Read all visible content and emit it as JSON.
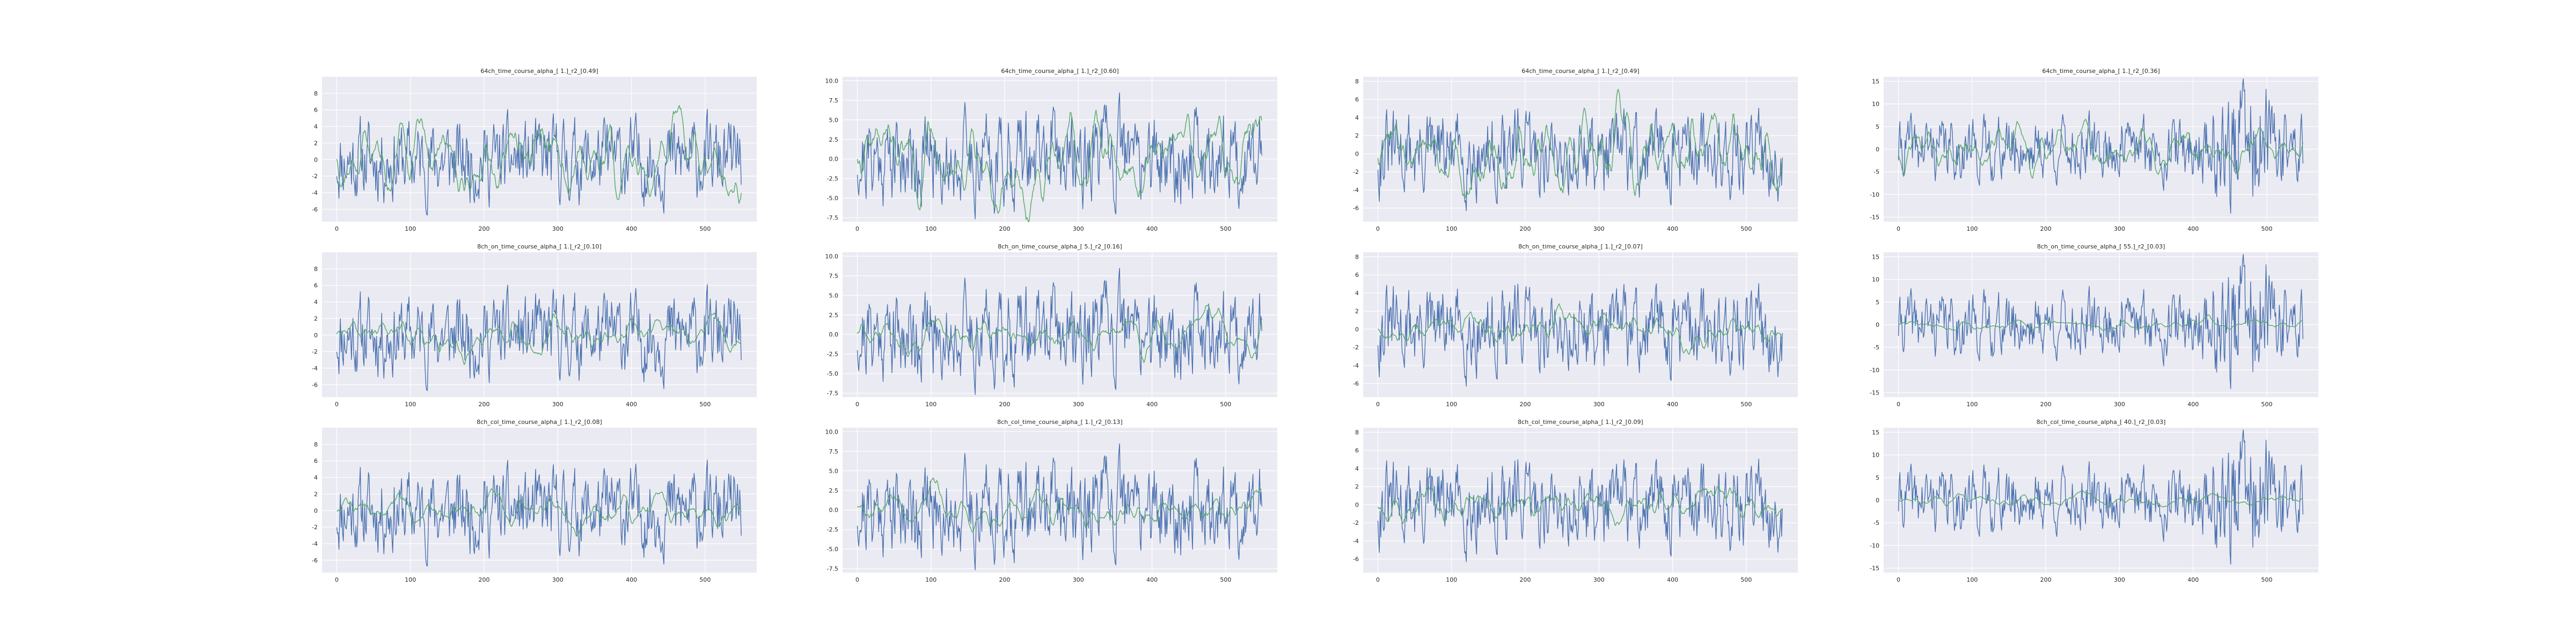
{
  "figure": {
    "background": "#ffffff",
    "axes_facecolor": "#eaeaf2",
    "grid_color": "#ffffff",
    "series_colors": [
      "#4c72b0",
      "#55a868"
    ]
  },
  "chart_data": [
    {
      "type": "line",
      "title": "64ch_time_course_alpha_[ 1.]_r2_[0.49]",
      "xlim": [
        -20,
        570
      ],
      "ylim": [
        -7.5,
        10
      ],
      "xticks": [
        0,
        100,
        200,
        300,
        400,
        500
      ],
      "yticks": [
        -6,
        -4,
        -2,
        0,
        2,
        4,
        6,
        8
      ],
      "grid": true,
      "series": [
        {
          "n": 550,
          "amp": 2.6,
          "seed": 11,
          "lag": 4,
          "envelope": "flat"
        },
        {
          "n": 550,
          "amp": 2.4,
          "seed": 12,
          "smooth": true,
          "envelope": "flat"
        }
      ]
    },
    {
      "type": "line",
      "title": "64ch_time_course_alpha_[ 1.]_r2_[0.60]",
      "xlim": [
        -20,
        570
      ],
      "ylim": [
        -8,
        10.5
      ],
      "xticks": [
        0,
        100,
        200,
        300,
        400,
        500
      ],
      "yticks": [
        -7.5,
        -5.0,
        -2.5,
        0.0,
        2.5,
        5.0,
        7.5,
        10.0
      ],
      "grid": true,
      "series": [
        {
          "n": 550,
          "amp": 3.0,
          "seed": 21,
          "envelope": "flat"
        },
        {
          "n": 550,
          "amp": 3.0,
          "seed": 22,
          "smooth": true,
          "envelope": "flat"
        }
      ]
    },
    {
      "type": "line",
      "title": "64ch_time_course_alpha_[ 1.]_r2_[0.49]",
      "xlim": [
        -20,
        570
      ],
      "ylim": [
        -7.5,
        8.5
      ],
      "xticks": [
        0,
        100,
        200,
        300,
        400,
        500
      ],
      "yticks": [
        -6,
        -4,
        -2,
        0,
        2,
        4,
        6,
        8
      ],
      "grid": true,
      "series": [
        {
          "n": 550,
          "amp": 2.4,
          "seed": 31,
          "envelope": "flat"
        },
        {
          "n": 550,
          "amp": 2.2,
          "seed": 32,
          "smooth": true,
          "envelope": "flat"
        }
      ]
    },
    {
      "type": "line",
      "title": "64ch_time_course_alpha_[ 1.]_r2_[0.36]",
      "xlim": [
        -20,
        570
      ],
      "ylim": [
        -16,
        16
      ],
      "xticks": [
        0,
        100,
        200,
        300,
        400,
        500
      ],
      "yticks": [
        -15,
        -10,
        -5,
        0,
        5,
        10,
        15
      ],
      "grid": true,
      "series": [
        {
          "n": 550,
          "amp": 3.5,
          "seed": 41,
          "envelope": "late"
        },
        {
          "n": 550,
          "amp": 2.4,
          "seed": 42,
          "smooth": true,
          "envelope": "flat"
        }
      ]
    },
    {
      "type": "line",
      "title": "8ch_on_time_course_alpha_[ 1.]_r2_[0.10]",
      "xlim": [
        -20,
        570
      ],
      "ylim": [
        -7.5,
        10
      ],
      "xticks": [
        0,
        100,
        200,
        300,
        400,
        500
      ],
      "yticks": [
        -6,
        -4,
        -2,
        0,
        2,
        4,
        6,
        8
      ],
      "grid": true,
      "series": [
        {
          "n": 550,
          "amp": 2.6,
          "seed": 11,
          "envelope": "flat"
        },
        {
          "n": 550,
          "amp": 1.1,
          "seed": 52,
          "smooth": true,
          "envelope": "flat"
        }
      ]
    },
    {
      "type": "line",
      "title": "8ch_on_time_course_alpha_[ 5.]_r2_[0.16]",
      "xlim": [
        -20,
        570
      ],
      "ylim": [
        -8,
        10.5
      ],
      "xticks": [
        0,
        100,
        200,
        300,
        400,
        500
      ],
      "yticks": [
        -7.5,
        -5.0,
        -2.5,
        0.0,
        2.5,
        5.0,
        7.5,
        10.0
      ],
      "grid": true,
      "series": [
        {
          "n": 550,
          "amp": 3.0,
          "seed": 21,
          "envelope": "flat"
        },
        {
          "n": 550,
          "amp": 1.3,
          "seed": 62,
          "smooth": true,
          "envelope": "flat"
        }
      ]
    },
    {
      "type": "line",
      "title": "8ch_on_time_course_alpha_[ 1.]_r2_[0.07]",
      "xlim": [
        -20,
        570
      ],
      "ylim": [
        -7.5,
        8.5
      ],
      "xticks": [
        0,
        100,
        200,
        300,
        400,
        500
      ],
      "yticks": [
        -6,
        -4,
        -2,
        0,
        2,
        4,
        6,
        8
      ],
      "grid": true,
      "series": [
        {
          "n": 550,
          "amp": 2.4,
          "seed": 31,
          "envelope": "flat"
        },
        {
          "n": 550,
          "amp": 0.9,
          "seed": 72,
          "smooth": true,
          "envelope": "flat"
        }
      ]
    },
    {
      "type": "line",
      "title": "8ch_on_time_course_alpha_[ 55.]_r2_[0.03]",
      "xlim": [
        -20,
        570
      ],
      "ylim": [
        -16,
        16
      ],
      "xticks": [
        0,
        100,
        200,
        300,
        400,
        500
      ],
      "yticks": [
        -15,
        -10,
        -5,
        0,
        5,
        10,
        15
      ],
      "grid": true,
      "series": [
        {
          "n": 550,
          "amp": 3.5,
          "seed": 41,
          "envelope": "late"
        },
        {
          "n": 550,
          "amp": 0.6,
          "seed": 82,
          "smooth": true,
          "envelope": "flat"
        }
      ]
    },
    {
      "type": "line",
      "title": "8ch_col_time_course_alpha_[ 1.]_r2_[0.08]",
      "xlim": [
        -20,
        570
      ],
      "ylim": [
        -7.5,
        10
      ],
      "xticks": [
        0,
        100,
        200,
        300,
        400,
        500
      ],
      "yticks": [
        -6,
        -4,
        -2,
        0,
        2,
        4,
        6,
        8
      ],
      "grid": true,
      "series": [
        {
          "n": 550,
          "amp": 2.6,
          "seed": 11,
          "envelope": "flat"
        },
        {
          "n": 550,
          "amp": 1.0,
          "seed": 92,
          "smooth": true,
          "envelope": "flat"
        }
      ]
    },
    {
      "type": "line",
      "title": "8ch_col_time_course_alpha_[ 1.]_r2_[0.13]",
      "xlim": [
        -20,
        570
      ],
      "ylim": [
        -8,
        10.5
      ],
      "xticks": [
        0,
        100,
        200,
        300,
        400,
        500
      ],
      "yticks": [
        -7.5,
        -5.0,
        -2.5,
        0.0,
        2.5,
        5.0,
        7.5,
        10.0
      ],
      "grid": true,
      "series": [
        {
          "n": 550,
          "amp": 3.0,
          "seed": 21,
          "envelope": "flat"
        },
        {
          "n": 550,
          "amp": 1.2,
          "seed": 102,
          "smooth": true,
          "envelope": "flat"
        }
      ]
    },
    {
      "type": "line",
      "title": "8ch_col_time_course_alpha_[ 1.]_r2_[0.09]",
      "xlim": [
        -20,
        570
      ],
      "ylim": [
        -7.5,
        8.5
      ],
      "xticks": [
        0,
        100,
        200,
        300,
        400,
        500
      ],
      "yticks": [
        -6,
        -4,
        -2,
        0,
        2,
        4,
        6,
        8
      ],
      "grid": true,
      "series": [
        {
          "n": 550,
          "amp": 2.4,
          "seed": 31,
          "envelope": "flat"
        },
        {
          "n": 550,
          "amp": 0.9,
          "seed": 112,
          "smooth": true,
          "envelope": "flat"
        }
      ]
    },
    {
      "type": "line",
      "title": "8ch_col_time_course_alpha_[ 40.]_r2_[0.03]",
      "xlim": [
        -20,
        570
      ],
      "ylim": [
        -16,
        16
      ],
      "xticks": [
        0,
        100,
        200,
        300,
        400,
        500
      ],
      "yticks": [
        -15,
        -10,
        -5,
        0,
        5,
        10,
        15
      ],
      "grid": true,
      "series": [
        {
          "n": 550,
          "amp": 3.5,
          "seed": 41,
          "envelope": "late"
        },
        {
          "n": 550,
          "amp": 0.7,
          "seed": 122,
          "smooth": true,
          "envelope": "flat"
        }
      ]
    }
  ]
}
